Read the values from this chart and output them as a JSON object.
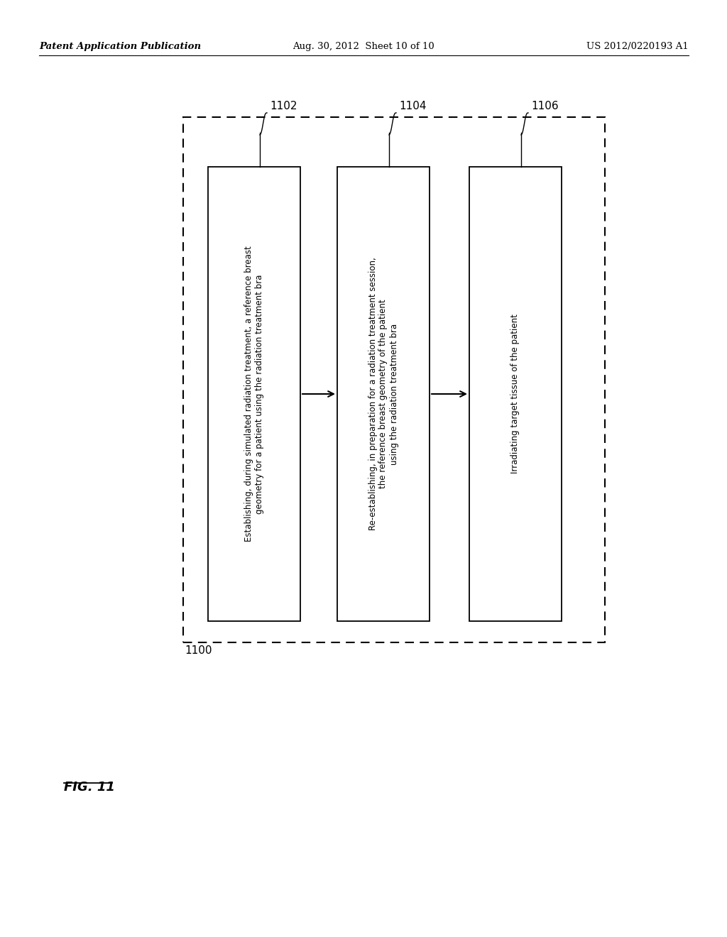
{
  "header_left": "Patent Application Publication",
  "header_center": "Aug. 30, 2012  Sheet 10 of 10",
  "header_right": "US 2012/0220193 A1",
  "fig_label": "FIG. 11",
  "outer_box_label": "1100",
  "boxes": [
    {
      "label": "1102",
      "text": "Establishing, during simulated radiation treatment, a reference breast\ngeometry for a patient using the radiation treatment bra"
    },
    {
      "label": "1104",
      "text": "Re-establishing, in preparation for a radiation treatment session,\nthe reference breast geometry of the patient\nusing the radiation treatment bra"
    },
    {
      "label": "1106",
      "text": "Irradiating target tissue of the patient"
    }
  ],
  "bg_color": "#ffffff",
  "box_color": "#ffffff",
  "box_edge_color": "#000000",
  "dashed_border_color": "#000000",
  "text_color": "#000000",
  "arrow_color": "#000000"
}
